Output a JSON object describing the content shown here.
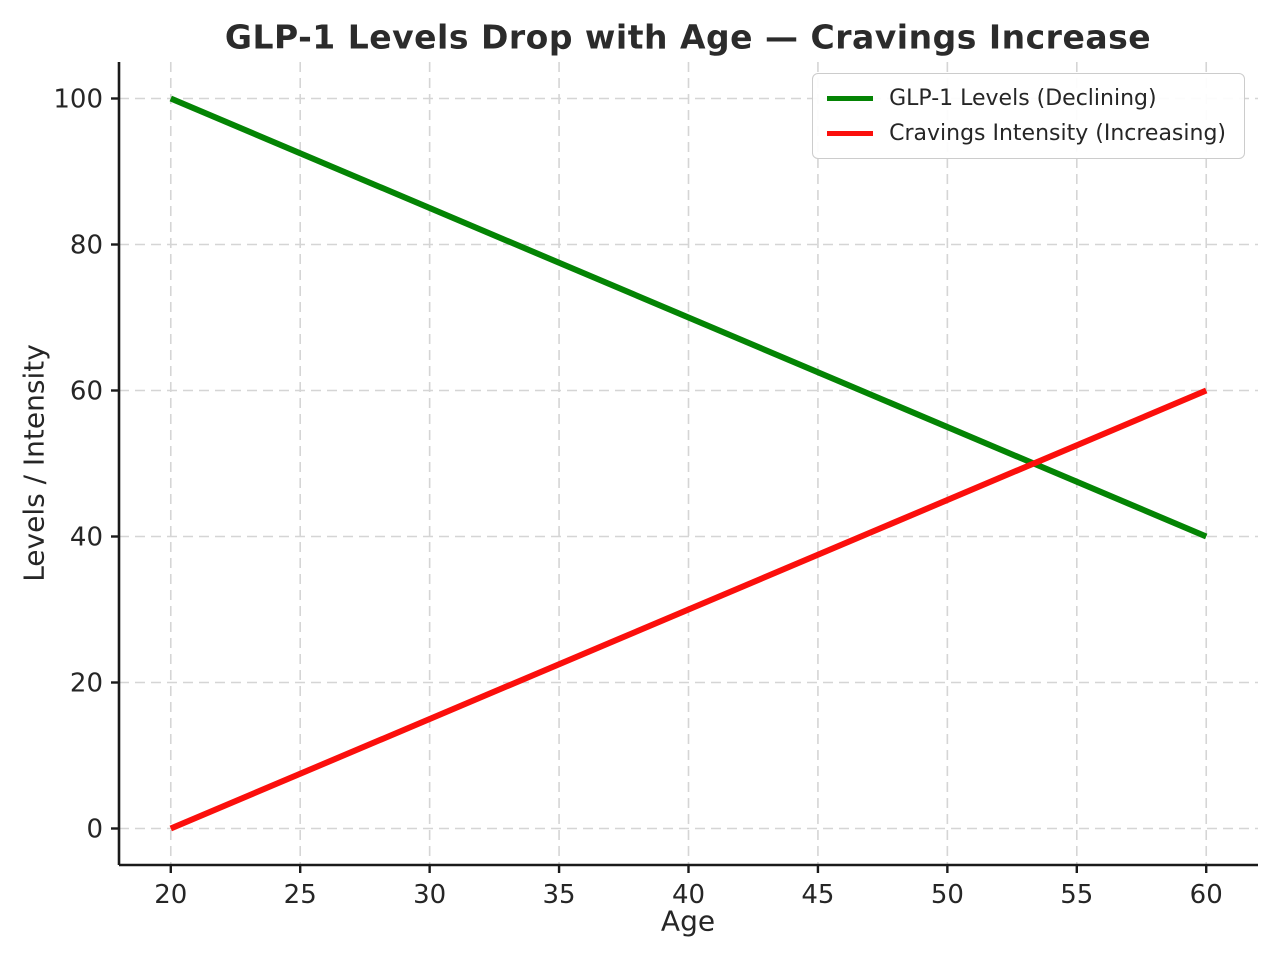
{
  "chart_data": {
    "type": "line",
    "title": "GLP-1 Levels Drop with Age — Cravings Increase",
    "xlabel": "Age",
    "ylabel": "Levels / Intensity",
    "xlim": [
      18,
      62
    ],
    "ylim": [
      -5,
      105
    ],
    "xticks": [
      20,
      25,
      30,
      35,
      40,
      45,
      50,
      55,
      60
    ],
    "yticks": [
      0,
      20,
      40,
      60,
      80,
      100
    ],
    "grid": true,
    "grid_style": "dashed",
    "legend_position": "upper right",
    "series": [
      {
        "name": "GLP-1 Levels (Declining)",
        "color": "#048404",
        "x": [
          20,
          60
        ],
        "values": [
          100,
          40
        ]
      },
      {
        "name": "Cravings Intensity (Increasing)",
        "color": "#fb0f0c",
        "x": [
          20,
          60
        ],
        "values": [
          0,
          60
        ]
      }
    ]
  }
}
